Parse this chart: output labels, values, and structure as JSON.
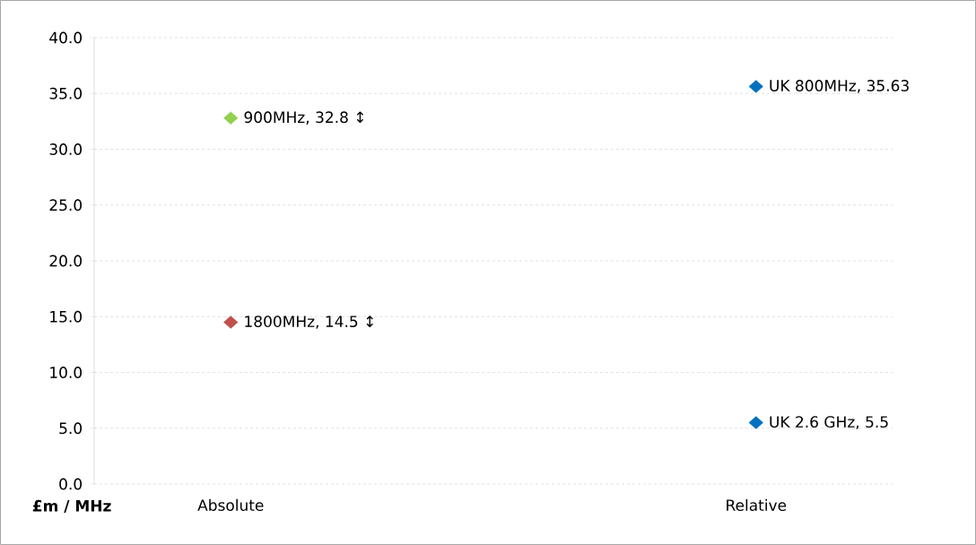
{
  "chart_data": {
    "type": "scatter",
    "ylabel": "£m / MHz",
    "categories": [
      "Absolute",
      "Relative"
    ],
    "series": [
      {
        "color": "#92d050",
        "values": [
          32.8,
          null
        ],
        "value_labels": [
          "900MHz, 32.8 ↕",
          null
        ]
      },
      {
        "color": "#c0504d",
        "values": [
          14.5,
          null
        ],
        "value_labels": [
          "1800MHz, 14.5 ↕",
          null
        ]
      },
      {
        "color": "#0070c0",
        "values": [
          null,
          35.63
        ],
        "value_labels": [
          null,
          "UK 800MHz, 35.63"
        ]
      },
      {
        "color": "#0070c0",
        "values": [
          null,
          5.5
        ],
        "value_labels": [
          null,
          "UK 2.6 GHz, 5.5"
        ]
      }
    ],
    "ylim": [
      0,
      40
    ],
    "yticks": [
      {
        "value": 0,
        "label": "0.0"
      },
      {
        "value": 5,
        "label": "5.0"
      },
      {
        "value": 10,
        "label": "10.0"
      },
      {
        "value": 15,
        "label": "15.0"
      },
      {
        "value": 20,
        "label": "20.0"
      },
      {
        "value": 25,
        "label": "25.0"
      },
      {
        "value": 30,
        "label": "30.0"
      },
      {
        "value": 35,
        "label": "35.0"
      },
      {
        "value": 40,
        "label": "40.0"
      }
    ],
    "grid": "y",
    "marker": "diamond"
  }
}
